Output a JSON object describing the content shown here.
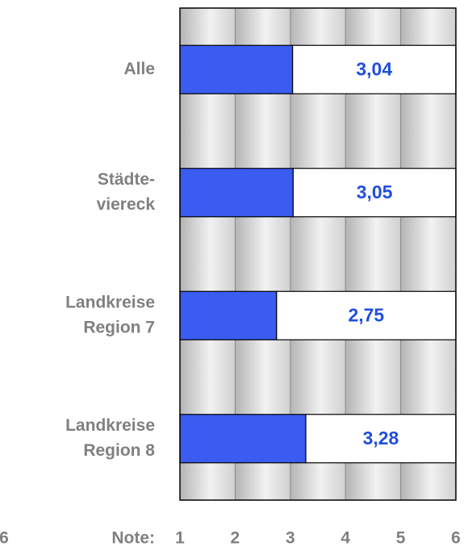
{
  "chart_data": {
    "type": "barh",
    "categories": [
      [
        "Alle"
      ],
      [
        "Städte-",
        "viereck"
      ],
      [
        "Landkreise",
        "Region 7"
      ],
      [
        "Landkreise",
        "Region 8"
      ]
    ],
    "values": [
      3.04,
      3.05,
      2.75,
      3.28
    ],
    "value_labels": [
      "3,04",
      "3,05",
      "2,75",
      "3,28"
    ],
    "color": "#3a5cf0",
    "x_label": "Note:",
    "xlim": [
      1,
      6
    ],
    "xticks": [
      1,
      2,
      3,
      4,
      5,
      6
    ],
    "grid": true,
    "cropped_left_label": "6"
  }
}
